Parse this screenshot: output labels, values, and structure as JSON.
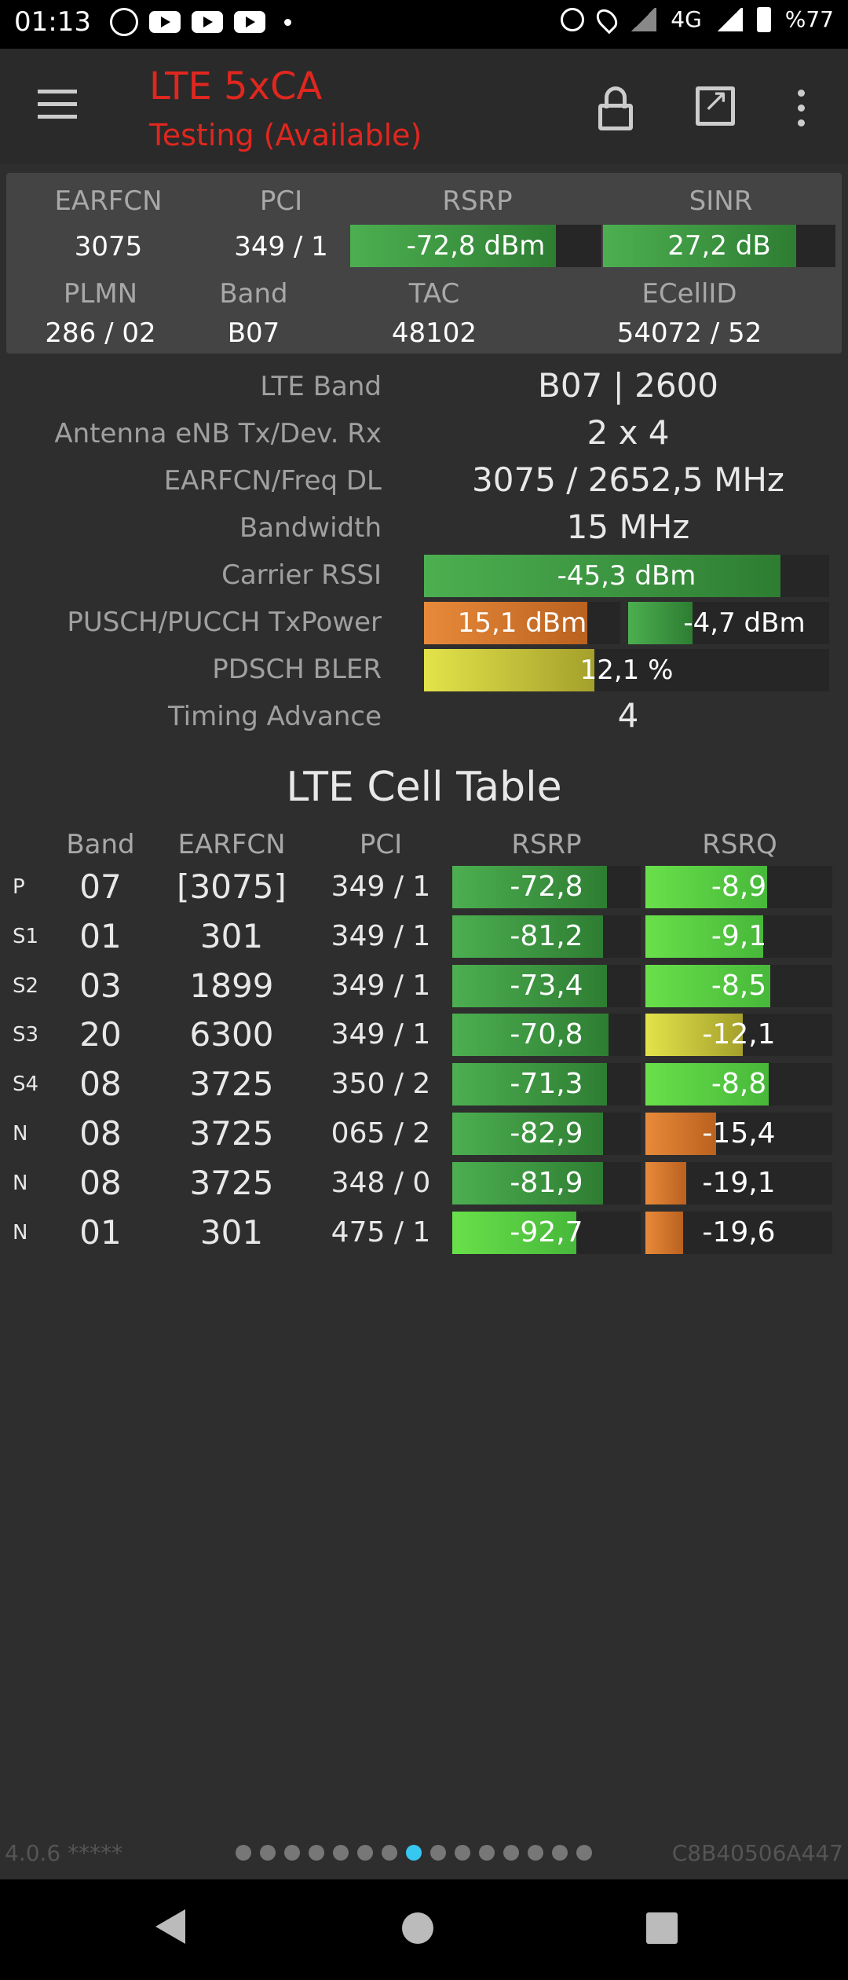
{
  "status_bar": {
    "time": "01:13",
    "network": "4G",
    "battery": "%77",
    "icons": [
      "whatsapp-icon",
      "youtube-icon",
      "youtube-icon",
      "youtube-icon",
      "notification-dot",
      "alarm-icon",
      "location-icon",
      "signal-icon",
      "signal-icon",
      "battery-icon"
    ]
  },
  "app_bar": {
    "title": "LTE 5xCA",
    "subtitle": "Testing (Available)",
    "title_color": "#e0271f"
  },
  "summary": {
    "labels": {
      "earfcn": "EARFCN",
      "pci": "PCI",
      "rsrp": "RSRP",
      "sinr": "SINR",
      "plmn": "PLMN",
      "band": "Band",
      "tac": "TAC",
      "ecellid": "ECellID"
    },
    "earfcn": "3075",
    "pci": "349 / 1",
    "rsrp": "-72,8 dBm",
    "rsrp_level": 0.82,
    "sinr": "27,2 dB",
    "sinr_level": 0.83,
    "plmn": "286 / 02",
    "band": "B07",
    "tac": "48102",
    "ecellid": "54072 / 52"
  },
  "details": {
    "lte_band_label": "LTE Band",
    "lte_band": "B07 | 2600",
    "antenna_label": "Antenna eNB Tx/Dev. Rx",
    "antenna": "2 x 4",
    "earfcn_freq_label": "EARFCN/Freq DL",
    "earfcn_freq": "3075 / 2652,5 MHz",
    "bandwidth_label": "Bandwidth",
    "bandwidth": "15 MHz",
    "rssi_label": "Carrier RSSI",
    "rssi": "-45,3 dBm",
    "rssi_level": 0.88,
    "txpower_label": "PUSCH/PUCCH TxPower",
    "pusch": "15,1 dBm",
    "pusch_level": 0.83,
    "pucch": "-4,7 dBm",
    "pucch_level": 0.32,
    "bler_label": "PDSCH BLER",
    "bler": "12,1 %",
    "bler_level": 0.42,
    "ta_label": "Timing Advance",
    "ta": "4"
  },
  "cell_table": {
    "title": "LTE Cell Table",
    "headers": {
      "band": "Band",
      "earfcn": "EARFCN",
      "pci": "PCI",
      "rsrp": "RSRP",
      "rsrq": "RSRQ"
    },
    "rows": [
      {
        "type": "P",
        "band": "07",
        "earfcn": "[3075]",
        "pci": "349 / 1",
        "rsrp": "-72,8",
        "rsrp_level": 0.82,
        "rsrp_color": "g",
        "rsrq": "-8,9",
        "rsrq_level": 0.65,
        "rsrq_color": "gl"
      },
      {
        "type": "S1",
        "band": "01",
        "earfcn": "301",
        "pci": "349 / 1",
        "rsrp": "-81,2",
        "rsrp_level": 0.8,
        "rsrp_color": "g",
        "rsrq": "-9,1",
        "rsrq_level": 0.63,
        "rsrq_color": "gl"
      },
      {
        "type": "S2",
        "band": "03",
        "earfcn": "1899",
        "pci": "349 / 1",
        "rsrp": "-73,4",
        "rsrp_level": 0.82,
        "rsrp_color": "g",
        "rsrq": "-8,5",
        "rsrq_level": 0.67,
        "rsrq_color": "gl"
      },
      {
        "type": "S3",
        "band": "20",
        "earfcn": "6300",
        "pci": "349 / 1",
        "rsrp": "-70,8",
        "rsrp_level": 0.83,
        "rsrp_color": "g",
        "rsrq": "-12,1",
        "rsrq_level": 0.52,
        "rsrq_color": "y"
      },
      {
        "type": "S4",
        "band": "08",
        "earfcn": "3725",
        "pci": "350 / 2",
        "rsrp": "-71,3",
        "rsrp_level": 0.82,
        "rsrp_color": "g",
        "rsrq": "-8,8",
        "rsrq_level": 0.66,
        "rsrq_color": "gl"
      },
      {
        "type": "N",
        "band": "08",
        "earfcn": "3725",
        "pci": "065 / 2",
        "rsrp": "-82,9",
        "rsrp_level": 0.8,
        "rsrp_color": "g",
        "rsrq": "-15,4",
        "rsrq_level": 0.38,
        "rsrq_color": "o"
      },
      {
        "type": "N",
        "band": "08",
        "earfcn": "3725",
        "pci": "348 / 0",
        "rsrp": "-81,9",
        "rsrp_level": 0.8,
        "rsrp_color": "g",
        "rsrq": "-19,1",
        "rsrq_level": 0.22,
        "rsrq_color": "o"
      },
      {
        "type": "N",
        "band": "01",
        "earfcn": "301",
        "pci": "475 / 1",
        "rsrp": "-92,7",
        "rsrp_level": 0.66,
        "rsrp_color": "gl",
        "rsrq": "-19,6",
        "rsrq_level": 0.2,
        "rsrq_color": "o"
      }
    ]
  },
  "footer": {
    "version": "4.0.6 *****",
    "device_id": "C8B40506A447",
    "page_count": 15,
    "active_page": 8
  },
  "colors": {
    "accent_red": "#e0271f",
    "page_indicator_active": "#37c8f2",
    "bar_green": "#4caf50",
    "bar_lightgreen": "#69e04a",
    "bar_yellow": "#e3e34a",
    "bar_orange": "#e88a3a"
  }
}
